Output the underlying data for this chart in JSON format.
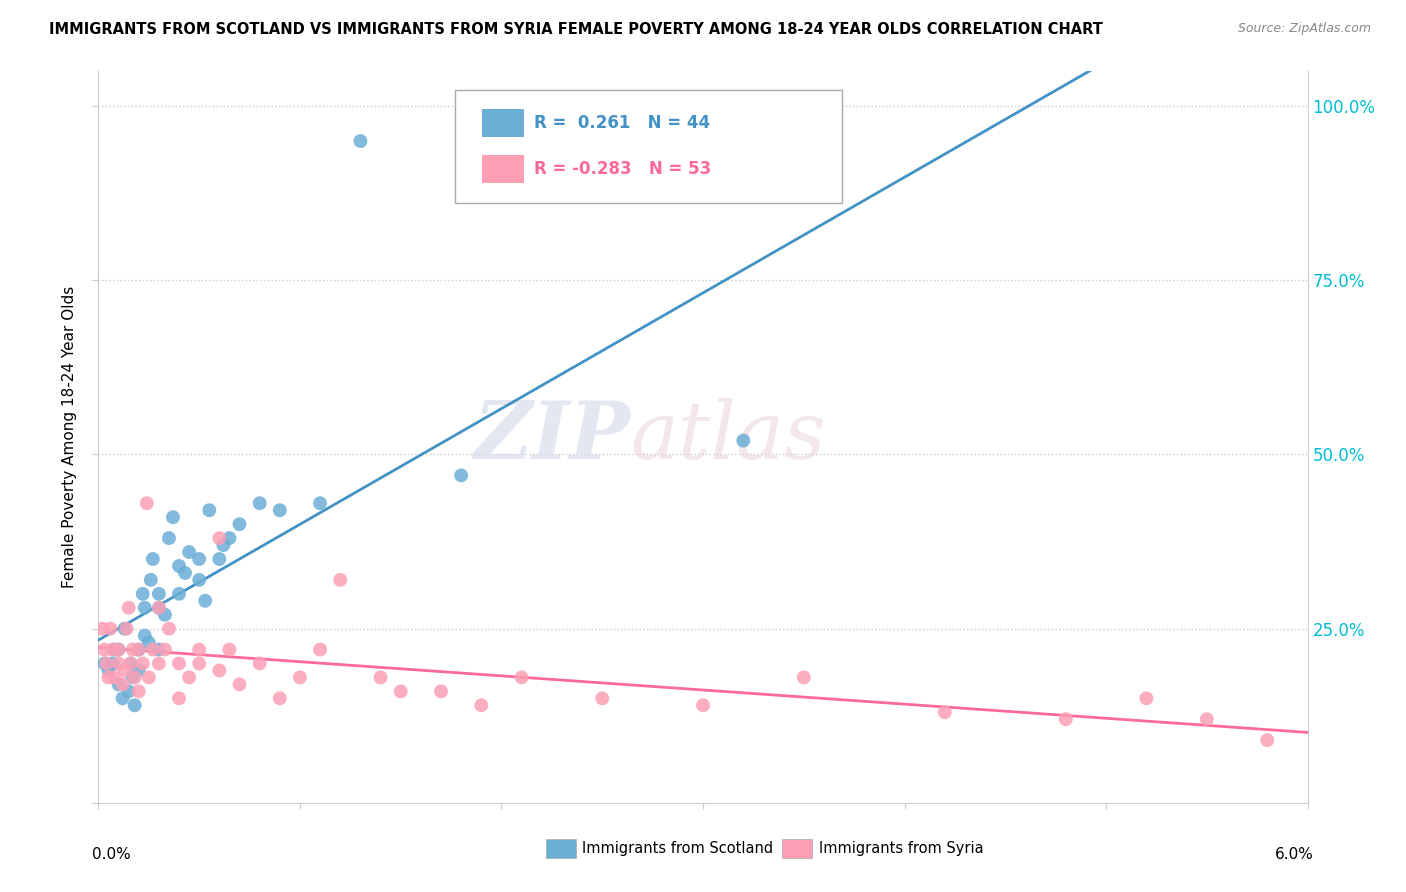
{
  "title": "IMMIGRANTS FROM SCOTLAND VS IMMIGRANTS FROM SYRIA FEMALE POVERTY AMONG 18-24 YEAR OLDS CORRELATION CHART",
  "source": "Source: ZipAtlas.com",
  "ylabel": "Female Poverty Among 18-24 Year Olds",
  "scotland_R": 0.261,
  "scotland_N": 44,
  "syria_R": -0.283,
  "syria_N": 53,
  "scotland_color": "#6baed6",
  "syria_color": "#fc9fb5",
  "scotland_line_color": "#4292c6",
  "syria_line_color": "#fb6a9a",
  "background_color": "#ffffff",
  "watermark_zip": "ZIP",
  "watermark_atlas": "atlas",
  "xlim": [
    0.0,
    0.06
  ],
  "ylim": [
    0.0,
    1.05
  ],
  "scotland_x": [
    0.0003,
    0.0005,
    0.0007,
    0.0008,
    0.001,
    0.001,
    0.0012,
    0.0013,
    0.0015,
    0.0016,
    0.0017,
    0.0018,
    0.002,
    0.002,
    0.0022,
    0.0023,
    0.0023,
    0.0025,
    0.0026,
    0.0027,
    0.003,
    0.003,
    0.003,
    0.0033,
    0.0035,
    0.0037,
    0.004,
    0.004,
    0.0043,
    0.0045,
    0.005,
    0.005,
    0.0053,
    0.0055,
    0.006,
    0.0062,
    0.0065,
    0.007,
    0.008,
    0.009,
    0.011,
    0.013,
    0.018,
    0.032
  ],
  "scotland_y": [
    0.2,
    0.19,
    0.2,
    0.22,
    0.22,
    0.17,
    0.15,
    0.25,
    0.16,
    0.2,
    0.18,
    0.14,
    0.19,
    0.22,
    0.3,
    0.28,
    0.24,
    0.23,
    0.32,
    0.35,
    0.3,
    0.28,
    0.22,
    0.27,
    0.38,
    0.41,
    0.3,
    0.34,
    0.33,
    0.36,
    0.32,
    0.35,
    0.29,
    0.42,
    0.35,
    0.37,
    0.38,
    0.4,
    0.43,
    0.42,
    0.43,
    0.95,
    0.47,
    0.52
  ],
  "syria_x": [
    0.0002,
    0.0003,
    0.0004,
    0.0005,
    0.0006,
    0.0007,
    0.0008,
    0.001,
    0.001,
    0.0012,
    0.0013,
    0.0014,
    0.0015,
    0.0016,
    0.0017,
    0.0018,
    0.002,
    0.002,
    0.0022,
    0.0024,
    0.0025,
    0.0027,
    0.003,
    0.003,
    0.0033,
    0.0035,
    0.004,
    0.004,
    0.0045,
    0.005,
    0.005,
    0.006,
    0.006,
    0.0065,
    0.007,
    0.008,
    0.009,
    0.01,
    0.011,
    0.012,
    0.014,
    0.015,
    0.017,
    0.019,
    0.021,
    0.025,
    0.03,
    0.035,
    0.042,
    0.048,
    0.052,
    0.055,
    0.058
  ],
  "syria_y": [
    0.25,
    0.22,
    0.2,
    0.18,
    0.25,
    0.22,
    0.18,
    0.2,
    0.22,
    0.17,
    0.19,
    0.25,
    0.28,
    0.2,
    0.22,
    0.18,
    0.16,
    0.22,
    0.2,
    0.43,
    0.18,
    0.22,
    0.28,
    0.2,
    0.22,
    0.25,
    0.2,
    0.15,
    0.18,
    0.22,
    0.2,
    0.38,
    0.19,
    0.22,
    0.17,
    0.2,
    0.15,
    0.18,
    0.22,
    0.32,
    0.18,
    0.16,
    0.16,
    0.14,
    0.18,
    0.15,
    0.14,
    0.18,
    0.13,
    0.12,
    0.15,
    0.12,
    0.09
  ]
}
